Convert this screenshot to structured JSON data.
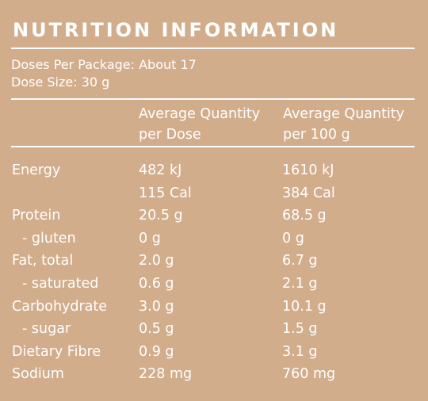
{
  "panel": {
    "title": "NUTRITION INFORMATION",
    "doses_per_package": "Doses Per Package: About 17",
    "dose_size": "Dose Size: 30 g",
    "col_dose_line1": "Average Quantity",
    "col_dose_line2": "per Dose",
    "col_100_line1": "Average Quantity",
    "col_100_line2": "per 100 g"
  },
  "rows": [
    {
      "name": "Energy",
      "dose": "482 kJ",
      "per100": "1610 kJ"
    },
    {
      "name": "",
      "dose": "115 Cal",
      "per100": "384 Cal"
    },
    {
      "name": "Protein",
      "dose": "20.5 g",
      "per100": "68.5 g"
    },
    {
      "name": "- gluten",
      "dose": "0 g",
      "per100": "0 g"
    },
    {
      "name": "Fat, total",
      "dose": "2.0 g",
      "per100": "6.7 g"
    },
    {
      "name": "- saturated",
      "dose": "0.6 g",
      "per100": "2.1 g"
    },
    {
      "name": "Carbohydrate",
      "dose": "3.0 g",
      "per100": "10.1 g"
    },
    {
      "name": "- sugar",
      "dose": "0.5 g",
      "per100": "1.5 g"
    },
    {
      "name": "Dietary Fibre",
      "dose": "0.9 g",
      "per100": "3.1 g"
    },
    {
      "name": "Sodium",
      "dose": "228 mg",
      "per100": "760 mg"
    }
  ]
}
